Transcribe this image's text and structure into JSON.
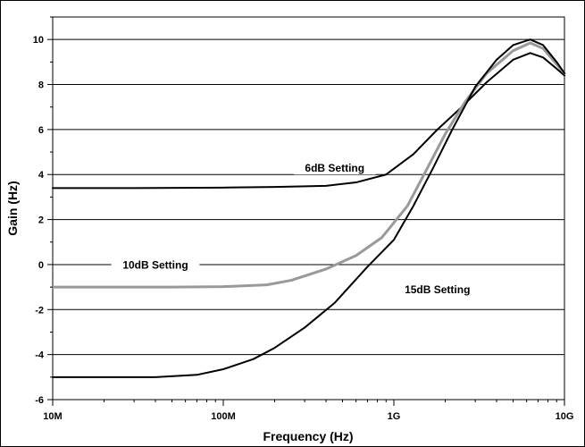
{
  "chart_data": {
    "type": "line",
    "title": "",
    "xlabel": "Frequency (Hz)",
    "ylabel": "Gain (Hz)",
    "x_scale": "log",
    "xlim": [
      10000000,
      10000000000
    ],
    "ylim": [
      -6,
      11
    ],
    "y_ticks": [
      -6,
      -4,
      -2,
      0,
      2,
      4,
      6,
      8,
      10
    ],
    "x_ticks": [
      {
        "value": 10000000,
        "label": "10M"
      },
      {
        "value": 100000000,
        "label": "100M"
      },
      {
        "value": 1000000000,
        "label": "1G"
      },
      {
        "value": 10000000000,
        "label": "10G"
      }
    ],
    "grid": {
      "horizontal": true,
      "vertical": false
    },
    "series": [
      {
        "name": "6dB Setting",
        "color": "#000000",
        "stroke": 2,
        "points": [
          [
            10000000,
            3.4
          ],
          [
            30000000,
            3.4
          ],
          [
            100000000,
            3.42
          ],
          [
            200000000,
            3.45
          ],
          [
            400000000,
            3.5
          ],
          [
            600000000,
            3.65
          ],
          [
            900000000,
            4.0
          ],
          [
            1300000000,
            4.9
          ],
          [
            1800000000,
            6.0
          ],
          [
            2500000000,
            7.0
          ],
          [
            3500000000,
            8.1
          ],
          [
            5000000000,
            9.1
          ],
          [
            6300000000,
            9.4
          ],
          [
            7500000000,
            9.2
          ],
          [
            9000000000,
            8.7
          ],
          [
            10000000000,
            8.4
          ]
        ]
      },
      {
        "name": "10dB Setting",
        "color": "#999999",
        "stroke": 3,
        "points": [
          [
            10000000,
            -1.0
          ],
          [
            50000000,
            -1.0
          ],
          [
            100000000,
            -0.98
          ],
          [
            180000000,
            -0.9
          ],
          [
            250000000,
            -0.7
          ],
          [
            400000000,
            -0.2
          ],
          [
            600000000,
            0.4
          ],
          [
            850000000,
            1.2
          ],
          [
            1200000000,
            2.6
          ],
          [
            1600000000,
            4.4
          ],
          [
            2000000000,
            5.8
          ],
          [
            2600000000,
            7.2
          ],
          [
            3500000000,
            8.5
          ],
          [
            5000000000,
            9.5
          ],
          [
            6300000000,
            9.85
          ],
          [
            7500000000,
            9.6
          ],
          [
            9000000000,
            8.9
          ],
          [
            10000000000,
            8.5
          ]
        ]
      },
      {
        "name": "15dB Setting",
        "color": "#000000",
        "stroke": 2,
        "points": [
          [
            10000000,
            -5.0
          ],
          [
            40000000,
            -5.0
          ],
          [
            70000000,
            -4.9
          ],
          [
            100000000,
            -4.65
          ],
          [
            150000000,
            -4.2
          ],
          [
            200000000,
            -3.7
          ],
          [
            300000000,
            -2.8
          ],
          [
            450000000,
            -1.7
          ],
          [
            700000000,
            -0.1
          ],
          [
            1000000000,
            1.1
          ],
          [
            1300000000,
            2.6
          ],
          [
            1700000000,
            4.3
          ],
          [
            2200000000,
            6.0
          ],
          [
            3000000000,
            7.9
          ],
          [
            4000000000,
            9.1
          ],
          [
            5000000000,
            9.75
          ],
          [
            6300000000,
            10.0
          ],
          [
            7500000000,
            9.75
          ],
          [
            9000000000,
            9.0
          ],
          [
            10000000000,
            8.5
          ]
        ]
      }
    ],
    "annotations": [
      {
        "text": "6dB Setting",
        "x": 450000000,
        "y": 4.2
      },
      {
        "text": "10dB Setting",
        "x": 40000000,
        "y": -0.1
      },
      {
        "text": "15dB Setting",
        "x": 1800000000,
        "y": -1.2
      }
    ]
  }
}
